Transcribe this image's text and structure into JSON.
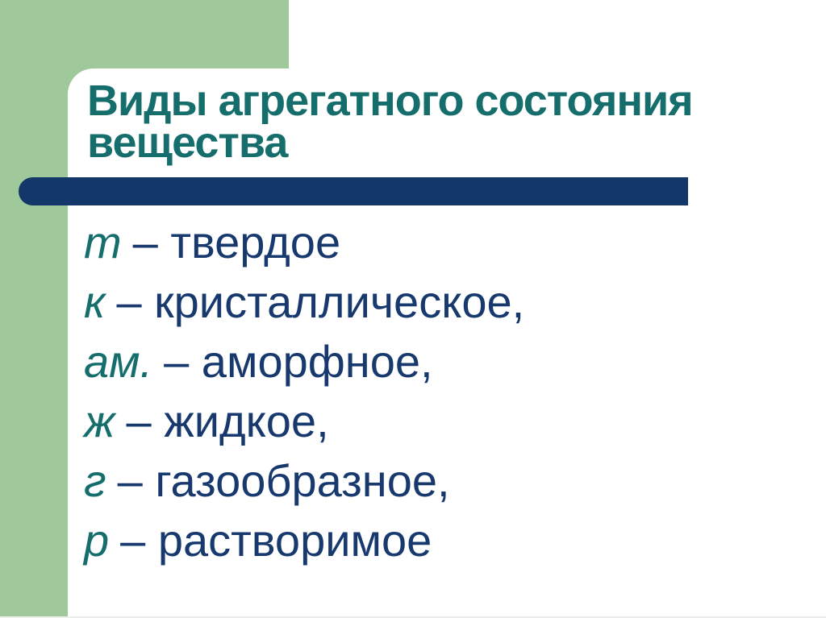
{
  "colors": {
    "green": "#9fc89b",
    "teal": "#156e6c",
    "navy": "#17396e",
    "bar": "#133768"
  },
  "title": {
    "full": "Виды агрегатного состояния вещества",
    "lines": [
      "Виды агрегатного состояния",
      "вещества"
    ]
  },
  "list": {
    "items": [
      {
        "abbr": "т",
        "text": "– твердое"
      },
      {
        "abbr": "к",
        "text": "– кристаллическое,"
      },
      {
        "abbr": "ам.",
        "text": "– аморфное,"
      },
      {
        "abbr": "ж",
        "text": "– жидкое,"
      },
      {
        "abbr": "г",
        "text": "– газообразное,"
      },
      {
        "abbr": "р",
        "text": "– растворимое"
      }
    ]
  }
}
